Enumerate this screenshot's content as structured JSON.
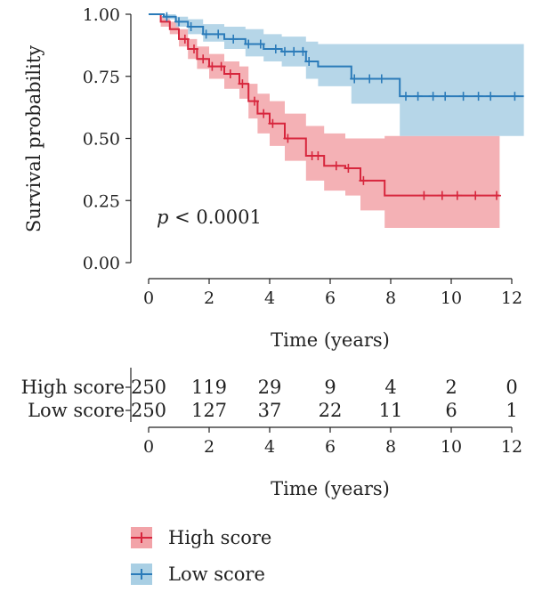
{
  "chart_data": {
    "type": "line",
    "subtype": "kaplan-meier",
    "xlabel": "Time (years)",
    "ylabel": "Survival probability",
    "xlim": [
      0,
      12.4
    ],
    "ylim": [
      0,
      1
    ],
    "x_ticks": [
      0,
      2,
      4,
      6,
      8,
      10,
      12
    ],
    "y_ticks": [
      "0.00",
      "0.25",
      "0.50",
      "0.75",
      "1.00"
    ],
    "grid": false,
    "annotation": {
      "italic": "p",
      "rest": " < 0.0001"
    },
    "series": [
      {
        "name": "High score",
        "color": "#d7263d",
        "fill": "#f2a3a8",
        "steps": [
          [
            0,
            1.0
          ],
          [
            0.4,
            0.97
          ],
          [
            0.7,
            0.94
          ],
          [
            1.0,
            0.9
          ],
          [
            1.3,
            0.86
          ],
          [
            1.6,
            0.82
          ],
          [
            2.0,
            0.79
          ],
          [
            2.5,
            0.76
          ],
          [
            3.0,
            0.72
          ],
          [
            3.3,
            0.65
          ],
          [
            3.6,
            0.6
          ],
          [
            4.0,
            0.56
          ],
          [
            4.5,
            0.5
          ],
          [
            5.2,
            0.43
          ],
          [
            5.8,
            0.39
          ],
          [
            6.5,
            0.38
          ],
          [
            7.0,
            0.33
          ],
          [
            7.8,
            0.27
          ],
          [
            11.6,
            0.27
          ]
        ],
        "lower": [
          [
            0,
            1.0
          ],
          [
            0.4,
            0.95
          ],
          [
            0.7,
            0.92
          ],
          [
            1.0,
            0.87
          ],
          [
            1.3,
            0.82
          ],
          [
            1.6,
            0.78
          ],
          [
            2.0,
            0.74
          ],
          [
            2.5,
            0.7
          ],
          [
            3.0,
            0.66
          ],
          [
            3.3,
            0.58
          ],
          [
            3.6,
            0.52
          ],
          [
            4.0,
            0.47
          ],
          [
            4.5,
            0.41
          ],
          [
            5.2,
            0.33
          ],
          [
            5.8,
            0.29
          ],
          [
            6.5,
            0.27
          ],
          [
            7.0,
            0.21
          ],
          [
            7.8,
            0.14
          ],
          [
            11.6,
            0.14
          ]
        ],
        "upper": [
          [
            0,
            1.0
          ],
          [
            0.4,
            0.99
          ],
          [
            0.7,
            0.97
          ],
          [
            1.0,
            0.94
          ],
          [
            1.3,
            0.9
          ],
          [
            1.6,
            0.87
          ],
          [
            2.0,
            0.84
          ],
          [
            2.5,
            0.81
          ],
          [
            3.0,
            0.79
          ],
          [
            3.3,
            0.72
          ],
          [
            3.6,
            0.68
          ],
          [
            4.0,
            0.65
          ],
          [
            4.5,
            0.6
          ],
          [
            5.2,
            0.55
          ],
          [
            5.8,
            0.52
          ],
          [
            6.5,
            0.5
          ],
          [
            7.0,
            0.5
          ],
          [
            7.8,
            0.51
          ],
          [
            11.6,
            0.51
          ]
        ],
        "censor_x": [
          1.2,
          1.5,
          1.8,
          2.1,
          2.4,
          2.7,
          3.1,
          3.5,
          3.8,
          4.1,
          4.6,
          5.4,
          5.6,
          6.2,
          6.6,
          7.1,
          9.1,
          9.7,
          10.2,
          10.8,
          11.5
        ],
        "risk": [
          "250",
          "119",
          "29",
          "9",
          "4",
          "2",
          "0"
        ]
      },
      {
        "name": "Low score",
        "color": "#2b7bb9",
        "fill": "#a9cfe4",
        "steps": [
          [
            0,
            1.0
          ],
          [
            0.5,
            0.99
          ],
          [
            0.9,
            0.97
          ],
          [
            1.3,
            0.95
          ],
          [
            1.8,
            0.92
          ],
          [
            2.5,
            0.9
          ],
          [
            3.2,
            0.88
          ],
          [
            3.8,
            0.86
          ],
          [
            4.4,
            0.85
          ],
          [
            5.2,
            0.81
          ],
          [
            5.6,
            0.79
          ],
          [
            6.7,
            0.74
          ],
          [
            8.3,
            0.67
          ],
          [
            12.4,
            0.67
          ]
        ],
        "lower": [
          [
            0,
            1.0
          ],
          [
            0.5,
            0.98
          ],
          [
            0.9,
            0.95
          ],
          [
            1.3,
            0.92
          ],
          [
            1.8,
            0.89
          ],
          [
            2.5,
            0.86
          ],
          [
            3.2,
            0.83
          ],
          [
            3.8,
            0.81
          ],
          [
            4.4,
            0.79
          ],
          [
            5.2,
            0.74
          ],
          [
            5.6,
            0.71
          ],
          [
            6.7,
            0.64
          ],
          [
            8.3,
            0.51
          ],
          [
            12.4,
            0.51
          ]
        ],
        "upper": [
          [
            0,
            1.0
          ],
          [
            0.5,
            1.0
          ],
          [
            0.9,
            0.99
          ],
          [
            1.3,
            0.98
          ],
          [
            1.8,
            0.96
          ],
          [
            2.5,
            0.95
          ],
          [
            3.2,
            0.94
          ],
          [
            3.8,
            0.92
          ],
          [
            4.4,
            0.91
          ],
          [
            5.2,
            0.89
          ],
          [
            5.6,
            0.88
          ],
          [
            6.7,
            0.88
          ],
          [
            8.3,
            0.88
          ],
          [
            12.4,
            0.88
          ]
        ],
        "censor_x": [
          0.6,
          1.0,
          1.4,
          1.9,
          2.3,
          2.8,
          3.3,
          3.7,
          4.2,
          4.5,
          4.8,
          5.1,
          5.3,
          6.8,
          7.3,
          7.7,
          8.5,
          8.9,
          9.4,
          9.8,
          10.4,
          10.9,
          11.3,
          12.1
        ],
        "risk": [
          "250",
          "127",
          "37",
          "22",
          "11",
          "6",
          "1"
        ]
      }
    ],
    "legend": {
      "placement": "bottom"
    }
  }
}
